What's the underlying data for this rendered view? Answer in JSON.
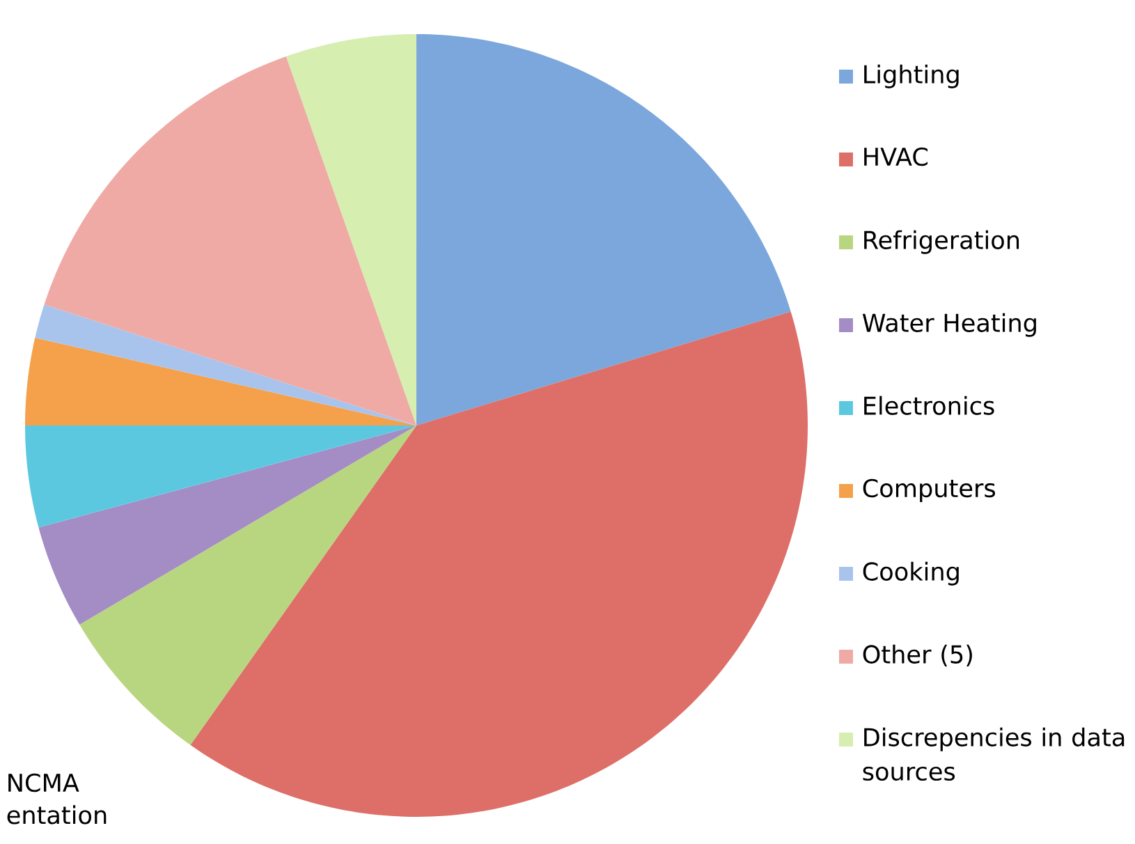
{
  "chart_data": {
    "type": "pie",
    "categories": [
      "Lighting",
      "HVAC",
      "Refrigeration",
      "Water Heating",
      "Electronics",
      "Computers",
      "Cooking",
      "Other (5)",
      "Discrepencies in data sources"
    ],
    "values": [
      20.3,
      39.5,
      6.7,
      4.3,
      4.2,
      3.6,
      1.4,
      14.6,
      5.4
    ],
    "colors": [
      "#7ba7dc",
      "#dd6f68",
      "#b8d67f",
      "#a48cc4",
      "#5cc8e0",
      "#f5a04a",
      "#a9c4ec",
      "#efaaa5",
      "#d6eeb0"
    ],
    "legend": "right",
    "annotations": [
      "NCMA",
      "entation"
    ]
  }
}
